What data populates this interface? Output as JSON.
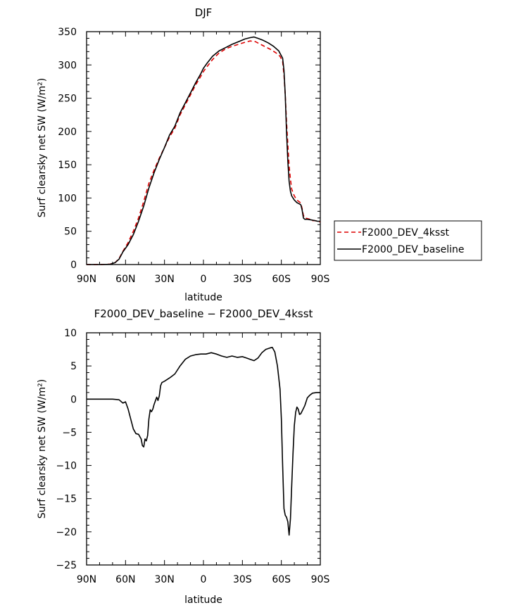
{
  "chart_data": [
    {
      "type": "line",
      "title": "DJF",
      "xlabel": "latitude",
      "ylabel": "Surf clearsky net SW (W/m²)",
      "xlim": [
        90,
        -90
      ],
      "ylim": [
        0,
        350
      ],
      "x_ticks": [
        90,
        60,
        30,
        0,
        -30,
        -60,
        -90
      ],
      "x_tick_labels": [
        "90N",
        "60N",
        "30N",
        "0",
        "30S",
        "60S",
        "90S"
      ],
      "y_ticks": [
        0,
        50,
        100,
        150,
        200,
        250,
        300,
        350
      ],
      "y_tick_labels": [
        "0",
        "50",
        "100",
        "150",
        "200",
        "250",
        "300",
        "350"
      ],
      "legend_position": "right",
      "series": [
        {
          "name": "F2000_DEV_4ksst",
          "color": "#dd0000",
          "dash": "dashed",
          "points": [
            [
              90,
              0
            ],
            [
              80,
              0
            ],
            [
              72,
              0.5
            ],
            [
              68,
              3
            ],
            [
              65,
              9
            ],
            [
              62,
              20
            ],
            [
              58,
              33
            ],
            [
              54,
              50
            ],
            [
              50,
              70
            ],
            [
              46,
              95
            ],
            [
              42,
              122
            ],
            [
              38,
              142
            ],
            [
              34,
              160
            ],
            [
              30,
              176
            ],
            [
              26,
              192
            ],
            [
              22,
              205
            ],
            [
              18,
              225
            ],
            [
              14,
              240
            ],
            [
              10,
              255
            ],
            [
              6,
              270
            ],
            [
              2,
              283
            ],
            [
              0,
              290
            ],
            [
              -3,
              298
            ],
            [
              -7,
              308
            ],
            [
              -12,
              318
            ],
            [
              -17,
              324
            ],
            [
              -22,
              328
            ],
            [
              -27,
              331
            ],
            [
              -32,
              334
            ],
            [
              -36,
              336
            ],
            [
              -40,
              335
            ],
            [
              -44,
              331
            ],
            [
              -48,
              327
            ],
            [
              -52,
              323
            ],
            [
              -56,
              318
            ],
            [
              -59,
              313
            ],
            [
              -61,
              305
            ],
            [
              -62,
              285
            ],
            [
              -63,
              255
            ],
            [
              -64,
              215
            ],
            [
              -65,
              180
            ],
            [
              -66,
              148
            ],
            [
              -67,
              128
            ],
            [
              -68,
              113
            ],
            [
              -70,
              103
            ],
            [
              -72,
              97
            ],
            [
              -74,
              94
            ],
            [
              -75,
              92
            ],
            [
              -76,
              84
            ],
            [
              -77,
              74
            ],
            [
              -78,
              70
            ],
            [
              -80,
              69
            ],
            [
              -82,
              68
            ],
            [
              -84,
              66
            ],
            [
              -86,
              66
            ],
            [
              -88,
              65
            ],
            [
              -90,
              64
            ]
          ]
        },
        {
          "name": "F2000_DEV_baseline",
          "color": "#000000",
          "dash": "solid",
          "points": [
            [
              90,
              0
            ],
            [
              80,
              0
            ],
            [
              72,
              0.3
            ],
            [
              68,
              3
            ],
            [
              65,
              8
            ],
            [
              62,
              19
            ],
            [
              58,
              30
            ],
            [
              54,
              45
            ],
            [
              50,
              65
            ],
            [
              46,
              88
            ],
            [
              42,
              115
            ],
            [
              38,
              138
            ],
            [
              34,
              158
            ],
            [
              30,
              176
            ],
            [
              26,
              195
            ],
            [
              22,
              208
            ],
            [
              18,
              228
            ],
            [
              14,
              243
            ],
            [
              10,
              258
            ],
            [
              6,
              273
            ],
            [
              2,
              287
            ],
            [
              0,
              295
            ],
            [
              -3,
              303
            ],
            [
              -7,
              313
            ],
            [
              -12,
              321
            ],
            [
              -17,
              326
            ],
            [
              -22,
              331
            ],
            [
              -27,
              335
            ],
            [
              -32,
              339
            ],
            [
              -36,
              341
            ],
            [
              -39,
              342
            ],
            [
              -42,
              340
            ],
            [
              -46,
              337
            ],
            [
              -50,
              333
            ],
            [
              -54,
              328
            ],
            [
              -58,
              321
            ],
            [
              -61,
              310
            ],
            [
              -62,
              292
            ],
            [
              -63,
              255
            ],
            [
              -64,
              200
            ],
            [
              -65,
              155
            ],
            [
              -66,
              125
            ],
            [
              -67,
              110
            ],
            [
              -68,
              103
            ],
            [
              -70,
              97
            ],
            [
              -72,
              93
            ],
            [
              -74,
              91
            ],
            [
              -75,
              90
            ],
            [
              -76,
              82
            ],
            [
              -77,
              70
            ],
            [
              -78,
              68
            ],
            [
              -80,
              68
            ],
            [
              -83,
              67
            ],
            [
              -86,
              66
            ],
            [
              -88,
              65
            ],
            [
              -90,
              65
            ]
          ]
        }
      ]
    },
    {
      "type": "line",
      "title": "F2000_DEV_baseline − F2000_DEV_4ksst",
      "xlabel": "latitude",
      "ylabel": "Surf clearsky net SW (W/m²)",
      "xlim": [
        90,
        -90
      ],
      "ylim": [
        -25,
        10
      ],
      "x_ticks": [
        90,
        60,
        30,
        0,
        -30,
        -60,
        -90
      ],
      "x_tick_labels": [
        "90N",
        "60N",
        "30N",
        "0",
        "30S",
        "60S",
        "90S"
      ],
      "y_ticks": [
        10,
        5,
        0,
        -5,
        -10,
        -15,
        -20,
        -25
      ],
      "y_tick_labels": [
        "10",
        "5",
        "0",
        "−5",
        "−10",
        "−15",
        "−20",
        "−25"
      ],
      "series": [
        {
          "name": "",
          "color": "#000000",
          "dash": "solid",
          "points": [
            [
              90,
              0
            ],
            [
              80,
              0
            ],
            [
              70,
              0
            ],
            [
              65,
              -0.1
            ],
            [
              62,
              -0.6
            ],
            [
              60,
              -0.4
            ],
            [
              58,
              -1.5
            ],
            [
              56,
              -3
            ],
            [
              54,
              -4.5
            ],
            [
              52,
              -5.2
            ],
            [
              50,
              -5.3
            ],
            [
              48,
              -6
            ],
            [
              47,
              -7
            ],
            [
              46,
              -7.2
            ],
            [
              45,
              -6
            ],
            [
              44,
              -6.3
            ],
            [
              43,
              -5.5
            ],
            [
              42,
              -3
            ],
            [
              41,
              -1.6
            ],
            [
              40,
              -1.9
            ],
            [
              39,
              -1.5
            ],
            [
              38,
              -0.8
            ],
            [
              36,
              0.3
            ],
            [
              35,
              -0.2
            ],
            [
              34,
              0.5
            ],
            [
              33,
              2
            ],
            [
              32,
              2.5
            ],
            [
              30,
              2.7
            ],
            [
              26,
              3.2
            ],
            [
              22,
              3.8
            ],
            [
              18,
              5
            ],
            [
              14,
              6
            ],
            [
              10,
              6.5
            ],
            [
              6,
              6.7
            ],
            [
              2,
              6.8
            ],
            [
              -2,
              6.8
            ],
            [
              -6,
              7
            ],
            [
              -10,
              6.8
            ],
            [
              -14,
              6.5
            ],
            [
              -18,
              6.3
            ],
            [
              -22,
              6.5
            ],
            [
              -26,
              6.3
            ],
            [
              -30,
              6.4
            ],
            [
              -33,
              6.2
            ],
            [
              -36,
              6
            ],
            [
              -39,
              5.8
            ],
            [
              -42,
              6.2
            ],
            [
              -45,
              7
            ],
            [
              -48,
              7.5
            ],
            [
              -51,
              7.7
            ],
            [
              -53,
              7.8
            ],
            [
              -55,
              7.1
            ],
            [
              -57,
              5
            ],
            [
              -59,
              1.5
            ],
            [
              -60,
              -3
            ],
            [
              -61,
              -10
            ],
            [
              -62,
              -16.5
            ],
            [
              -63,
              -17.5
            ],
            [
              -64,
              -17.8
            ],
            [
              -65,
              -18.5
            ],
            [
              -66,
              -20.5
            ],
            [
              -67,
              -18
            ],
            [
              -68,
              -13
            ],
            [
              -69,
              -8
            ],
            [
              -70,
              -4
            ],
            [
              -71,
              -2
            ],
            [
              -72,
              -1.2
            ],
            [
              -73,
              -1.5
            ],
            [
              -74,
              -2.3
            ],
            [
              -75,
              -2.2
            ],
            [
              -76,
              -1.8
            ],
            [
              -78,
              -1
            ],
            [
              -80,
              0.2
            ],
            [
              -82,
              0.6
            ],
            [
              -84,
              0.9
            ],
            [
              -87,
              1
            ],
            [
              -90,
              1
            ]
          ]
        }
      ]
    }
  ]
}
